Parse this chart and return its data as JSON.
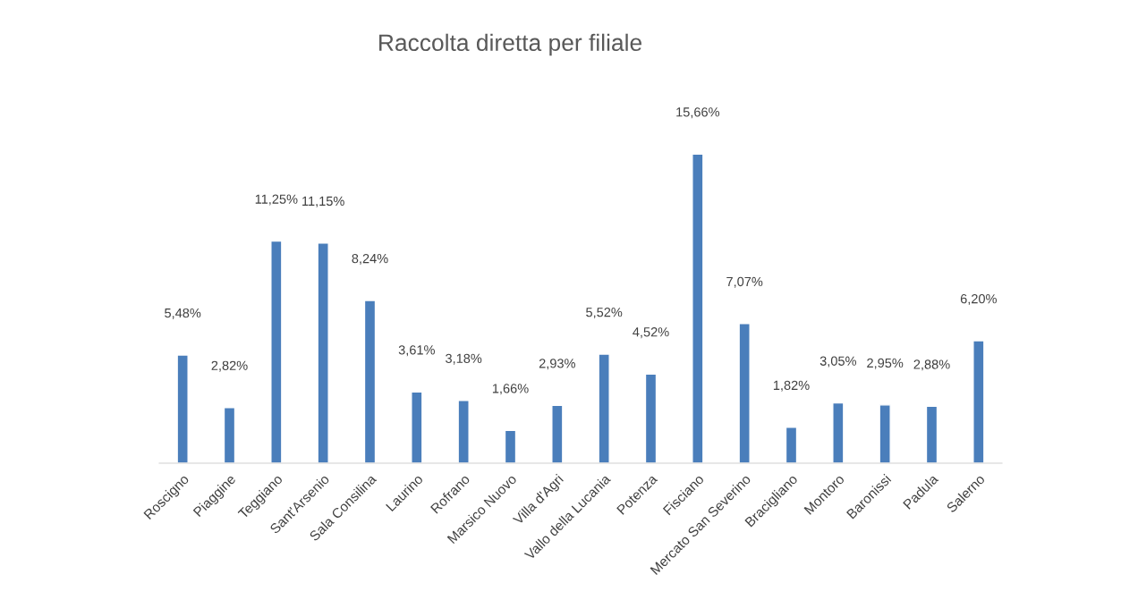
{
  "chart_data": {
    "type": "bar",
    "title": "Raccolta diretta per filiale",
    "categories": [
      "Roscigno",
      "Piaggine",
      "Teggiano",
      "Sant'Arsenio",
      "Sala Consilina",
      "Laurino",
      "Rofrano",
      "Marsico Nuovo",
      "Villa d'Agri",
      "Vallo della Lucania",
      "Potenza",
      "Fisciano",
      "Mercato San Severino",
      "Bracigliano",
      "Montoro",
      "Baronissi",
      "Padula",
      "Salerno"
    ],
    "values": [
      5.48,
      2.82,
      11.25,
      11.15,
      8.24,
      3.61,
      3.18,
      1.66,
      2.93,
      5.52,
      4.52,
      15.66,
      7.07,
      1.82,
      3.05,
      2.95,
      2.88,
      6.2
    ],
    "value_labels": [
      "5,48%",
      "2,82%",
      "11,25%",
      "11,15%",
      "8,24%",
      "3,61%",
      "3,18%",
      "1,66%",
      "2,93%",
      "5,52%",
      "4,52%",
      "15,66%",
      "7,07%",
      "1,82%",
      "3,05%",
      "2,95%",
      "2,88%",
      "6,20%"
    ],
    "color": "#4a7ebb",
    "tick_labels": "x",
    "grid": false,
    "legend": false
  }
}
